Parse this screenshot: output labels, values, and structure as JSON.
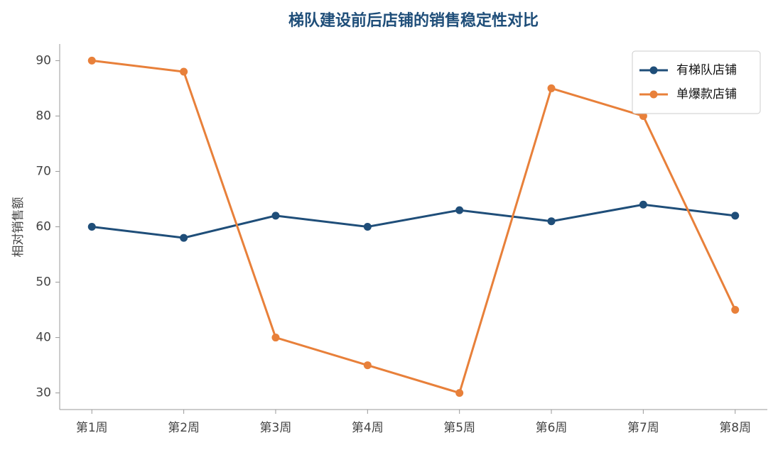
{
  "chart_data": {
    "type": "line",
    "title": "梯队建设前后店铺的销售稳定性对比",
    "y_label": "相对销售额",
    "categories": [
      "第1周",
      "第2周",
      "第3周",
      "第4周",
      "第5周",
      "第6周",
      "第7周",
      "第8周"
    ],
    "series": [
      {
        "name": "有梯队店铺",
        "color": "#1f4e79",
        "values": [
          60,
          58,
          62,
          60,
          63,
          61,
          64,
          62
        ]
      },
      {
        "name": "单爆款店铺",
        "color": "#e8803a",
        "values": [
          90,
          88,
          40,
          35,
          30,
          85,
          80,
          45
        ]
      }
    ],
    "ylim": [
      27,
      93
    ],
    "yticks": [
      30,
      40,
      50,
      60,
      70,
      80,
      90
    ],
    "grid": false,
    "legend": "upper right"
  }
}
